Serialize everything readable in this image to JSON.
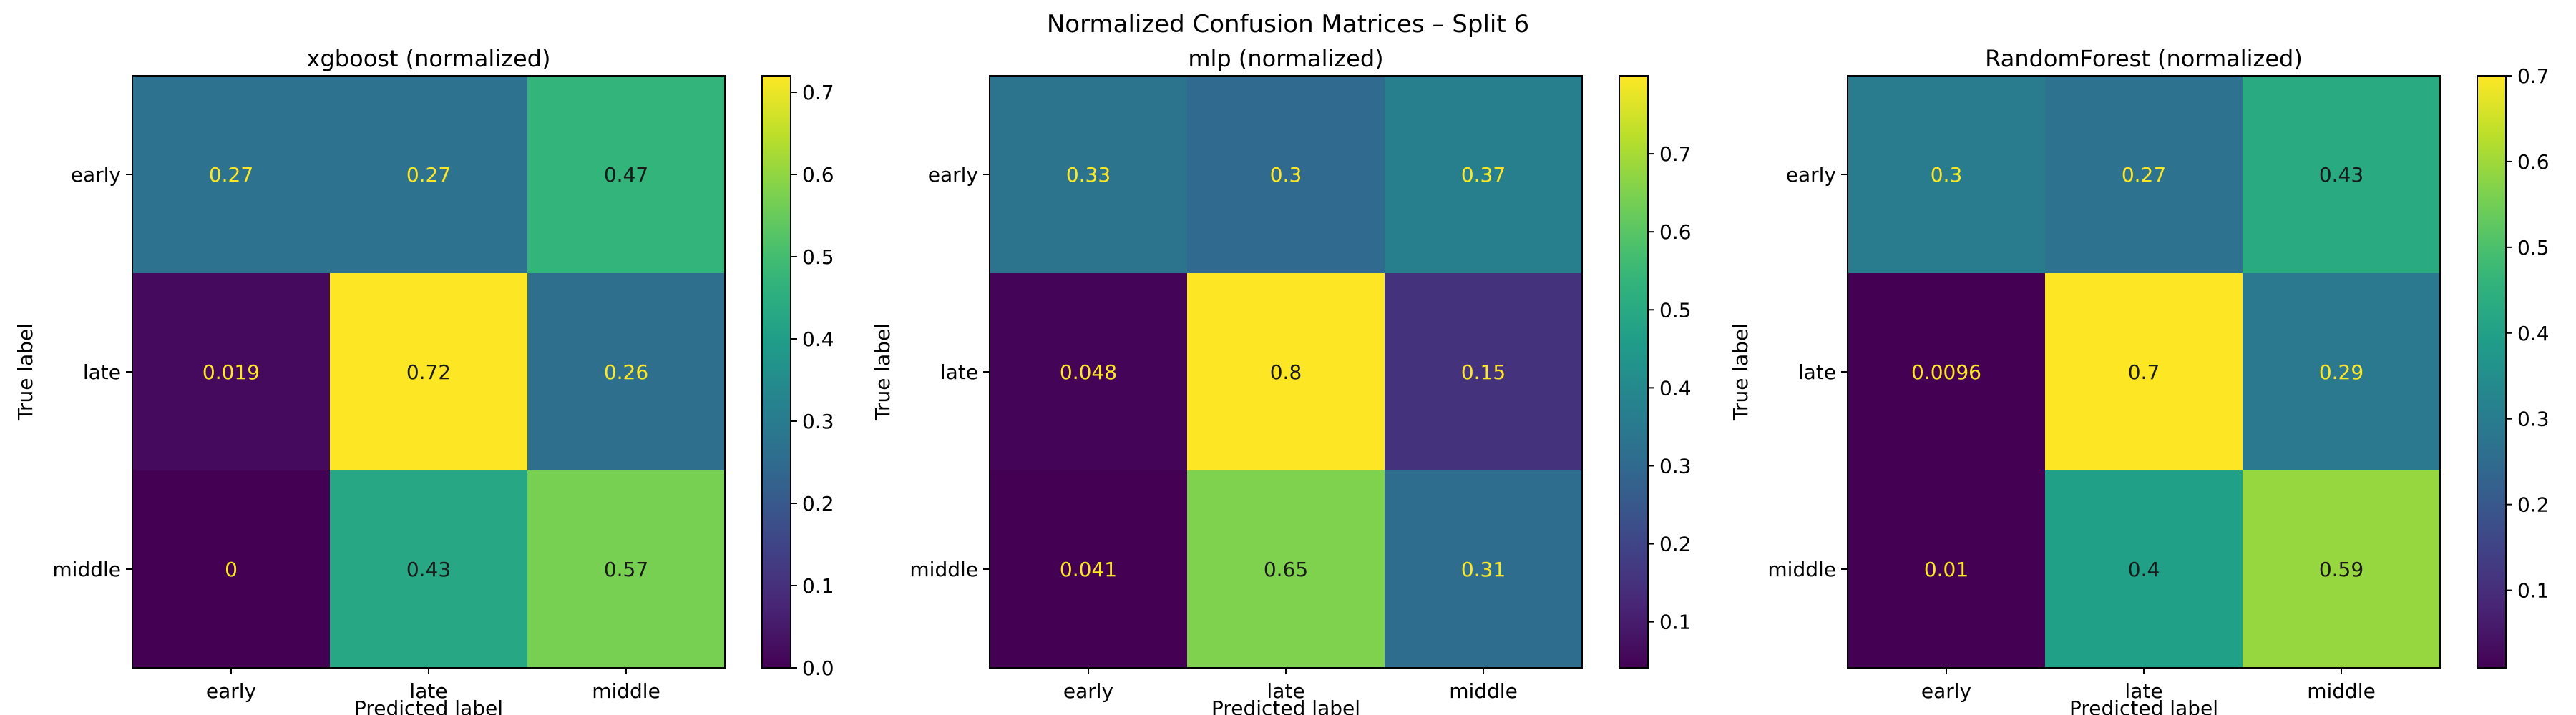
{
  "figure_title": "Normalized Confusion Matrices – Split 6",
  "chart_data": [
    {
      "type": "heatmap",
      "title": "xgboost (normalized)",
      "xlabel": "Predicted label",
      "ylabel": "True label",
      "x_categories": [
        "early",
        "late",
        "middle"
      ],
      "y_categories": [
        "early",
        "late",
        "middle"
      ],
      "values": [
        [
          0.27,
          0.27,
          0.47
        ],
        [
          0.019,
          0.72,
          0.26
        ],
        [
          0,
          0.43,
          0.57
        ]
      ],
      "colormap": "viridis",
      "vmin": 0,
      "vmax": 0.72,
      "colorbar_ticks": [
        0.0,
        0.1,
        0.2,
        0.3,
        0.4,
        0.5,
        0.6,
        0.7
      ],
      "colorbar_tick_labels": [
        "0.0",
        "0.1",
        "0.2",
        "0.3",
        "0.4",
        "0.5",
        "0.6",
        "0.7"
      ]
    },
    {
      "type": "heatmap",
      "title": "mlp (normalized)",
      "xlabel": "Predicted label",
      "ylabel": "True label",
      "x_categories": [
        "early",
        "late",
        "middle"
      ],
      "y_categories": [
        "early",
        "late",
        "middle"
      ],
      "values": [
        [
          0.33,
          0.3,
          0.37
        ],
        [
          0.048,
          0.8,
          0.15
        ],
        [
          0.041,
          0.65,
          0.31
        ]
      ],
      "colormap": "viridis",
      "vmin": 0.041,
      "vmax": 0.8,
      "colorbar_ticks": [
        0.1,
        0.2,
        0.3,
        0.4,
        0.5,
        0.6,
        0.7
      ],
      "colorbar_tick_labels": [
        "0.1",
        "0.2",
        "0.3",
        "0.4",
        "0.5",
        "0.6",
        "0.7"
      ]
    },
    {
      "type": "heatmap",
      "title": "RandomForest (normalized)",
      "xlabel": "Predicted label",
      "ylabel": "True label",
      "x_categories": [
        "early",
        "late",
        "middle"
      ],
      "y_categories": [
        "early",
        "late",
        "middle"
      ],
      "values": [
        [
          0.3,
          0.27,
          0.43
        ],
        [
          0.0096,
          0.7,
          0.29
        ],
        [
          0.01,
          0.4,
          0.59
        ]
      ],
      "colormap": "viridis",
      "vmin": 0.0096,
      "vmax": 0.7,
      "colorbar_ticks": [
        0.1,
        0.2,
        0.3,
        0.4,
        0.5,
        0.6,
        0.7
      ],
      "colorbar_tick_labels": [
        "0.1",
        "0.2",
        "0.3",
        "0.4",
        "0.5",
        "0.6",
        "0.7"
      ]
    }
  ]
}
